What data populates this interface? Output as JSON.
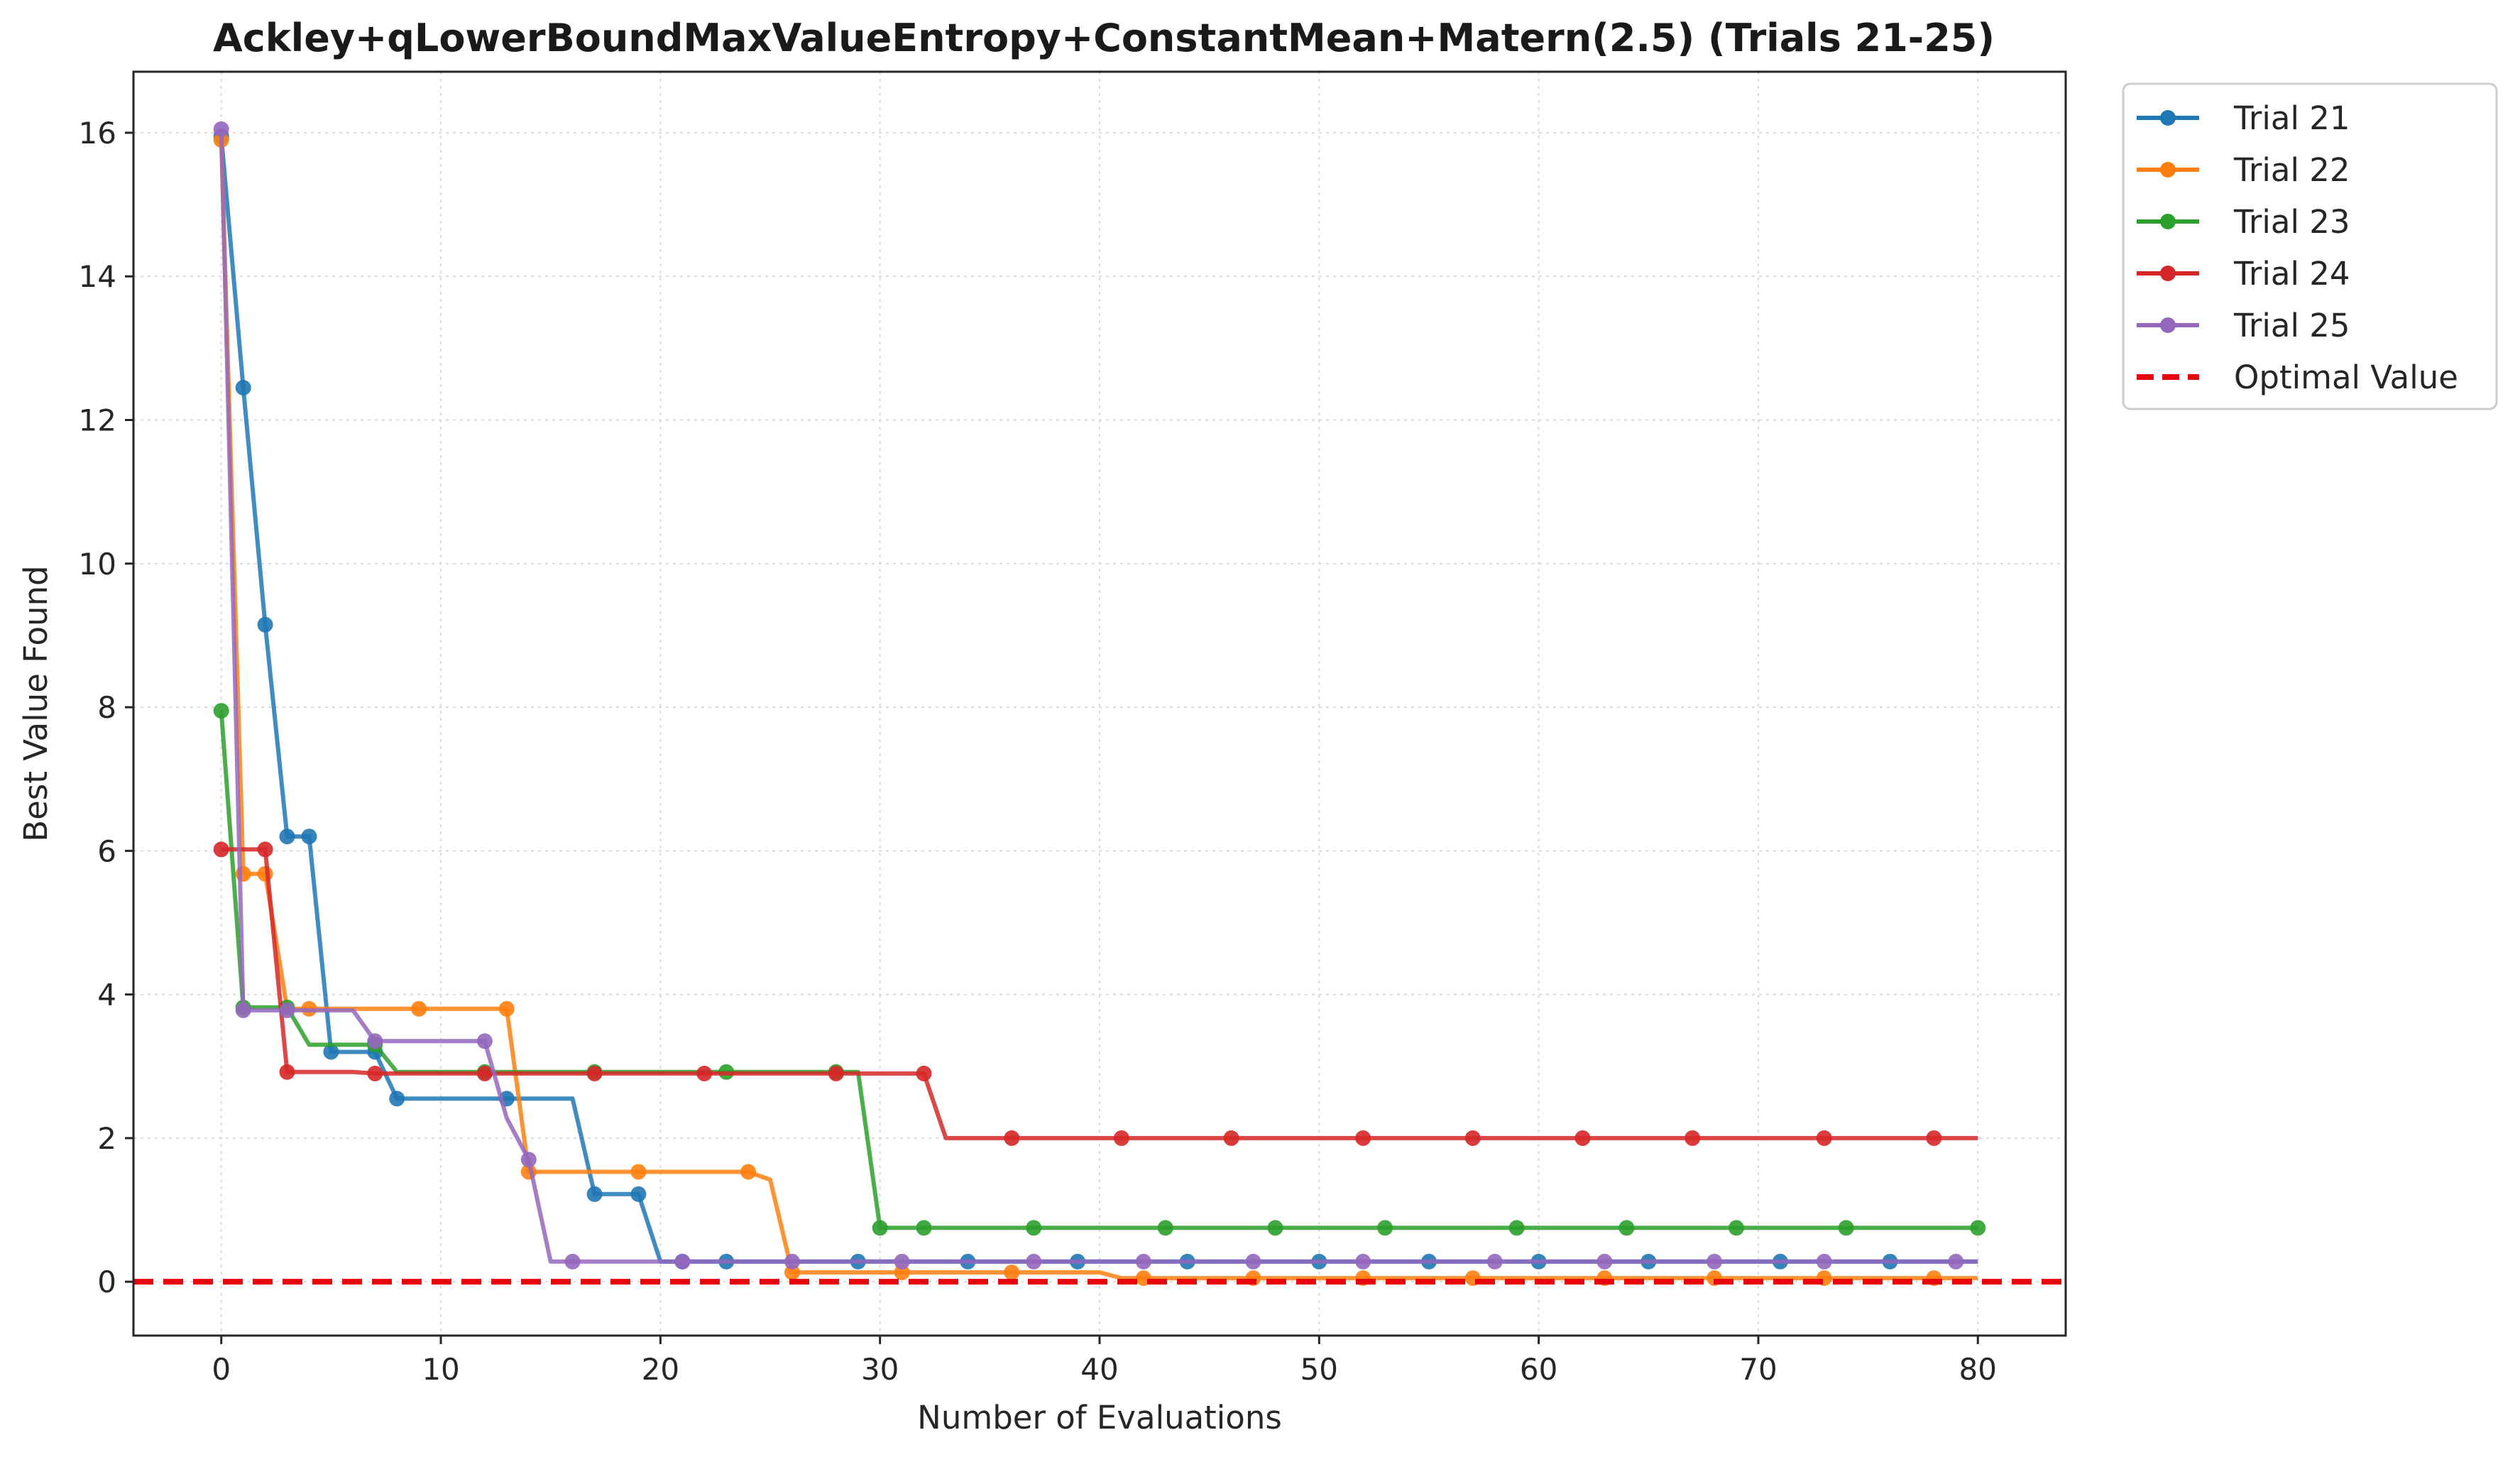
{
  "chart_data": {
    "type": "line",
    "title": "Ackley+qLowerBoundMaxValueEntropy+ConstantMean+Matern(2.5) (Trials 21-25)",
    "xlabel": "Number of Evaluations",
    "ylabel": "Best Value Found",
    "xlim": [
      -4,
      84
    ],
    "ylim": [
      -0.75,
      16.85
    ],
    "xticks": [
      0,
      10,
      20,
      30,
      40,
      50,
      60,
      70,
      80
    ],
    "yticks": [
      0,
      2,
      4,
      6,
      8,
      10,
      12,
      14,
      16
    ],
    "grid": true,
    "legend_position": "outside-top-right",
    "optimal_value": {
      "name": "Optimal Value",
      "value": 0,
      "color": "#e8000b",
      "style": "dashed"
    },
    "series": [
      {
        "name": "Trial 21",
        "color": "#1f77b4",
        "x": [
          0,
          1,
          2,
          3,
          4,
          5,
          6,
          7,
          8,
          9,
          10,
          11,
          12,
          13,
          14,
          15,
          16,
          17,
          18,
          19,
          20,
          80
        ],
        "y": [
          15.95,
          12.45,
          9.15,
          6.2,
          6.2,
          3.2,
          3.2,
          3.2,
          2.55,
          2.55,
          2.55,
          2.55,
          2.55,
          2.55,
          2.55,
          2.55,
          2.55,
          1.22,
          1.22,
          1.22,
          0.28,
          0.28
        ],
        "markers_x": [
          0,
          1,
          2,
          3,
          4,
          5,
          7,
          8,
          13,
          17,
          19,
          21,
          23,
          29,
          34,
          39,
          44,
          50,
          55,
          60,
          65,
          71,
          76
        ],
        "markers_y": [
          15.95,
          12.45,
          9.15,
          6.2,
          6.2,
          3.2,
          3.2,
          2.55,
          2.55,
          1.22,
          1.22,
          0.28,
          0.28,
          0.28,
          0.28,
          0.28,
          0.28,
          0.28,
          0.28,
          0.28,
          0.28,
          0.28,
          0.28
        ]
      },
      {
        "name": "Trial 22",
        "color": "#ff7f0e",
        "x": [
          0,
          1,
          2,
          3,
          4,
          13,
          14,
          24,
          25,
          26,
          40,
          41,
          80
        ],
        "y": [
          15.9,
          5.68,
          5.68,
          3.8,
          3.8,
          3.8,
          1.53,
          1.53,
          1.42,
          0.13,
          0.13,
          0.05,
          0.05
        ],
        "markers_x": [
          0,
          1,
          2,
          4,
          9,
          13,
          14,
          19,
          24,
          26,
          31,
          36,
          42,
          47,
          52,
          57,
          63,
          68,
          73,
          78
        ],
        "markers_y": [
          15.9,
          5.68,
          5.68,
          3.8,
          3.8,
          3.8,
          1.53,
          1.53,
          1.53,
          0.13,
          0.13,
          0.13,
          0.05,
          0.05,
          0.05,
          0.05,
          0.05,
          0.05,
          0.05,
          0.05
        ]
      },
      {
        "name": "Trial 23",
        "color": "#2ca02c",
        "x": [
          0,
          1,
          3,
          4,
          7,
          8,
          29,
          30,
          80
        ],
        "y": [
          7.95,
          3.82,
          3.82,
          3.3,
          3.3,
          2.92,
          2.92,
          0.75,
          0.75
        ],
        "markers_x": [
          0,
          1,
          3,
          7,
          12,
          17,
          23,
          28,
          30,
          32,
          37,
          43,
          48,
          53,
          59,
          64,
          69,
          74,
          80
        ],
        "markers_y": [
          7.95,
          3.82,
          3.82,
          3.3,
          2.92,
          2.92,
          2.92,
          2.92,
          0.75,
          0.75,
          0.75,
          0.75,
          0.75,
          0.75,
          0.75,
          0.75,
          0.75,
          0.75,
          0.75
        ]
      },
      {
        "name": "Trial 24",
        "color": "#d62728",
        "x": [
          0,
          2,
          3,
          6,
          7,
          32,
          33,
          80
        ],
        "y": [
          6.02,
          6.02,
          2.92,
          2.92,
          2.9,
          2.9,
          2.0,
          2.0
        ],
        "markers_x": [
          0,
          2,
          3,
          7,
          12,
          17,
          22,
          28,
          32,
          36,
          41,
          46,
          52,
          57,
          62,
          67,
          73,
          78
        ],
        "markers_y": [
          6.02,
          6.02,
          2.92,
          2.9,
          2.9,
          2.9,
          2.9,
          2.9,
          2.9,
          2.0,
          2.0,
          2.0,
          2.0,
          2.0,
          2.0,
          2.0,
          2.0,
          2.0
        ]
      },
      {
        "name": "Trial 25",
        "color": "#9467bd",
        "x": [
          0,
          1,
          6,
          7,
          12,
          13,
          14,
          15,
          80
        ],
        "y": [
          16.05,
          3.78,
          3.78,
          3.35,
          3.35,
          2.28,
          1.7,
          0.28,
          0.28
        ],
        "markers_x": [
          0,
          1,
          3,
          7,
          12,
          14,
          16,
          21,
          26,
          31,
          37,
          42,
          47,
          52,
          58,
          63,
          68,
          73,
          79
        ],
        "markers_y": [
          16.05,
          3.78,
          3.78,
          3.35,
          3.35,
          1.7,
          0.28,
          0.28,
          0.28,
          0.28,
          0.28,
          0.28,
          0.28,
          0.28,
          0.28,
          0.28,
          0.28,
          0.28,
          0.28
        ]
      }
    ]
  }
}
